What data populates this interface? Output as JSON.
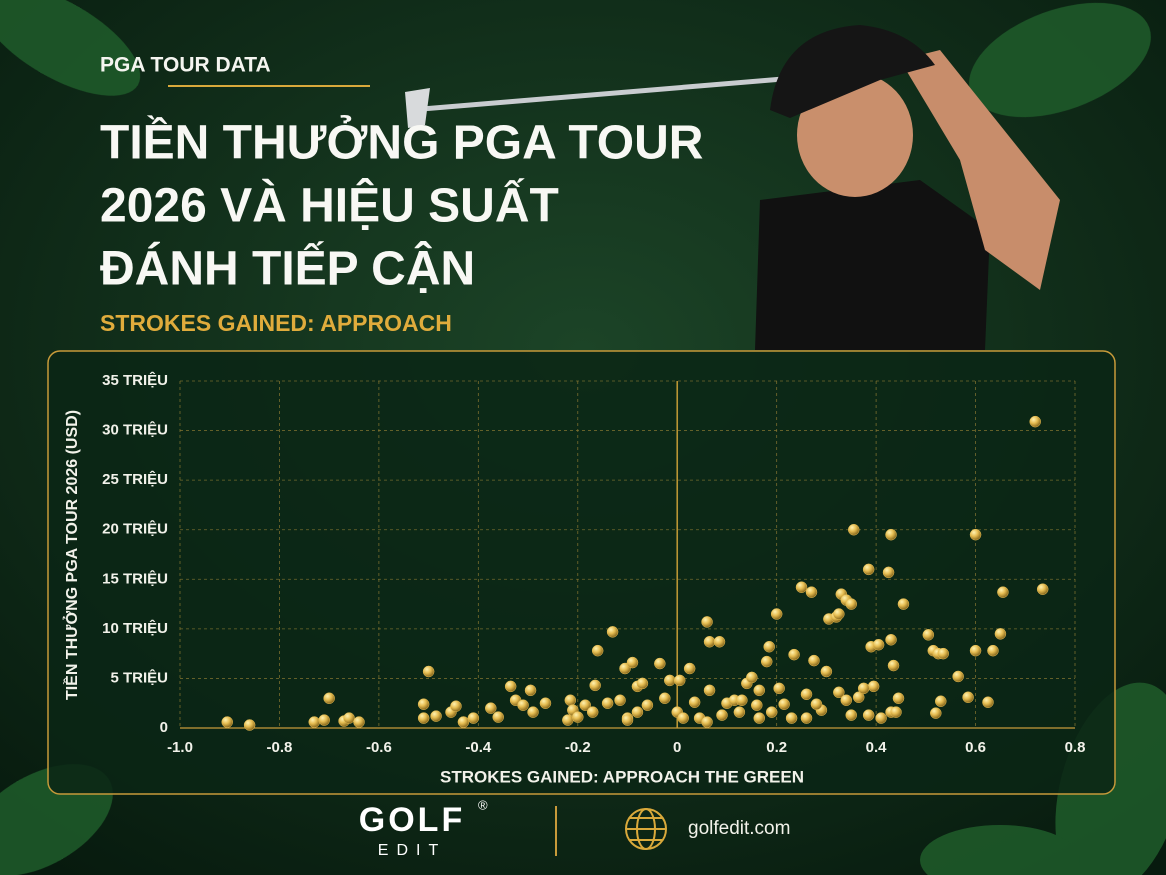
{
  "header": {
    "kicker": "PGA TOUR DATA"
  },
  "chart_data": {
    "type": "scatter",
    "title": [
      "TIỀN THƯỞNG PGA TOUR",
      "2026 VÀ HIỆU SUẤT",
      "ĐÁNH TIẾP CẬN"
    ],
    "subtitle": "STROKES GAINED: APPROACH",
    "xlabel": "STROKES GAINED: APPROACH THE GREEN",
    "ylabel": "TIỀN THƯỞNG PGA TOUR 2026 (USD)",
    "xlim": [
      -1.0,
      0.8
    ],
    "ylim": [
      0,
      35
    ],
    "xticks": [
      {
        "value": -1.0,
        "label": "-1.0"
      },
      -0.8,
      -0.6,
      -0.4,
      -0.2,
      0,
      0.2,
      0.4,
      0.6,
      0.8
    ],
    "yticks": [
      0,
      {
        "value": 5,
        "label": "5 TRIỆU"
      },
      {
        "value": 10,
        "label": "10 TRIỆU"
      },
      {
        "value": 15,
        "label": "15 TRIỆU"
      },
      {
        "value": 20,
        "label": "20 TRIỆU"
      },
      {
        "value": 25,
        "label": "25 TRIỆU"
      },
      {
        "value": 30,
        "label": "30 TRIỆU"
      },
      {
        "value": 35,
        "label": "35 TRIỆU"
      }
    ],
    "grid": true,
    "color": "#e6bd52",
    "x": [
      -0.905,
      -0.86,
      -0.73,
      -0.71,
      -0.7,
      -0.67,
      -0.66,
      -0.64,
      -0.51,
      -0.51,
      -0.5,
      -0.485,
      -0.455,
      -0.445,
      -0.43,
      -0.41,
      -0.375,
      -0.36,
      -0.335,
      -0.325,
      -0.31,
      -0.295,
      -0.29,
      -0.265,
      -0.22,
      -0.215,
      -0.21,
      -0.2,
      -0.185,
      -0.165,
      -0.16,
      -0.14,
      -0.13,
      -0.115,
      -0.105,
      -0.1,
      -0.09,
      -0.08,
      -0.08,
      -0.07,
      -0.06,
      -0.035,
      -0.025,
      -0.015,
      0,
      0.005,
      0.012,
      0.025,
      0.035,
      0.045,
      0.06,
      0.06,
      0.065,
      0.085,
      0.065,
      0.09,
      0.1,
      0.115,
      0.125,
      0.14,
      0.15,
      0.16,
      0.165,
      0.18,
      0.185,
      0.19,
      0.2,
      0.205,
      0.215,
      0.23,
      0.235,
      0.25,
      0.26,
      0.27,
      0.275,
      0.29,
      0.3,
      0.305,
      0.32,
      0.325,
      0.33,
      0.34,
      0.35,
      0.325,
      0.34,
      0.35,
      0.355,
      0.385,
      0.385,
      0.395,
      0.39,
      0.405,
      0.425,
      0.43,
      0.43,
      0.435,
      0.445,
      0.455,
      0.43,
      0.505,
      0.515,
      0.525,
      0.535,
      0.52,
      0.53,
      0.565,
      0.585,
      0.6,
      0.6,
      0.625,
      0.635,
      0.65,
      0.655,
      0.72,
      0.735,
      0.26,
      0.28,
      0.365,
      0.375,
      0.41,
      0.44,
      0.165,
      0.13,
      -0.1,
      -0.17
    ],
    "values": [
      0.6,
      0.3,
      0.6,
      0.8,
      3.0,
      0.7,
      1.0,
      0.6,
      2.4,
      1.0,
      5.7,
      1.2,
      1.6,
      2.2,
      0.6,
      1.0,
      2.0,
      1.1,
      4.2,
      2.8,
      2.3,
      3.8,
      1.6,
      2.5,
      0.8,
      2.8,
      1.8,
      1.1,
      2.3,
      4.3,
      7.8,
      2.5,
      9.7,
      2.8,
      6.0,
      1.0,
      6.6,
      1.6,
      4.2,
      4.5,
      2.3,
      6.5,
      3.0,
      4.8,
      1.6,
      4.8,
      1.0,
      6.0,
      2.6,
      1.0,
      0.6,
      10.7,
      8.7,
      8.7,
      3.8,
      1.3,
      2.5,
      2.8,
      1.6,
      4.5,
      5.1,
      2.3,
      3.8,
      6.7,
      8.2,
      1.6,
      11.5,
      4.0,
      2.4,
      1.0,
      7.4,
      14.2,
      3.4,
      13.7,
      6.8,
      1.8,
      5.7,
      11.0,
      11.2,
      11.5,
      13.5,
      12.9,
      12.5,
      3.6,
      2.8,
      1.3,
      20.0,
      1.3,
      16.0,
      4.2,
      8.2,
      8.4,
      15.7,
      19.5,
      8.9,
      6.3,
      3.0,
      12.5,
      1.6,
      9.4,
      7.8,
      7.5,
      7.5,
      1.5,
      2.7,
      5.2,
      3.1,
      19.5,
      7.8,
      2.6,
      7.8,
      9.5,
      13.7,
      30.9,
      14.0,
      1.0,
      2.4,
      3.1,
      4.0,
      1.0,
      1.6,
      1.0,
      2.8,
      0.8,
      1.6
    ]
  },
  "footer": {
    "brand": "GOLF",
    "brand_mark": "®",
    "brand_sub": "EDIT",
    "website": "golfedit.com"
  }
}
